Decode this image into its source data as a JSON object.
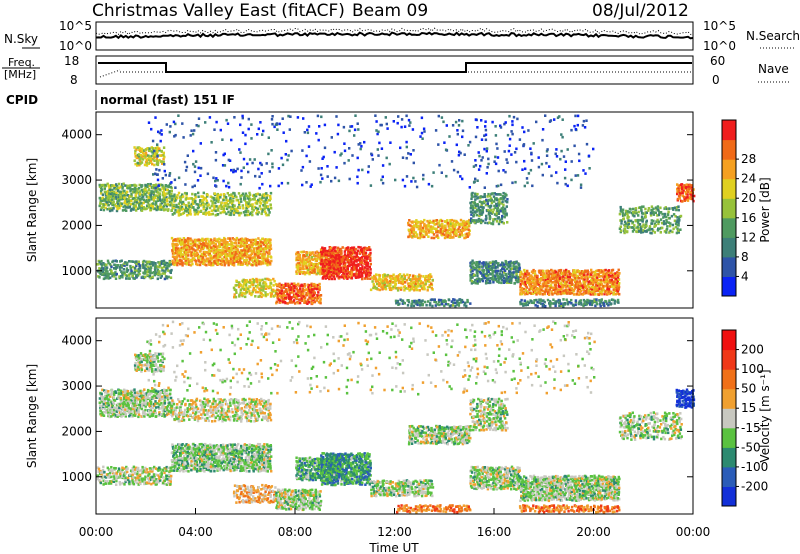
{
  "header": {
    "site": "Christmas Valley East (fitACF)",
    "beam": "Beam 09",
    "date": "08/Jul/2012"
  },
  "strips": {
    "nsky": {
      "label": "N.Sky",
      "left_ticks": [
        "10^5",
        "10^0"
      ]
    },
    "nsearch": {
      "label": "N.Search",
      "right_ticks": [
        "10^5",
        "10^0"
      ]
    },
    "freq": {
      "label_line1": "Freq.",
      "label_line2": "[MHz]",
      "left_ticks": [
        "18",
        "8"
      ]
    },
    "nave": {
      "label": "Nave",
      "right_ticks": [
        "60",
        "0"
      ]
    },
    "cpid": {
      "label": "CPID",
      "value": "normal (fast) 151 IF"
    }
  },
  "chart_data": [
    {
      "type": "heatmap",
      "title": "",
      "ylabel": "Slant Range [km]",
      "xlabel": "",
      "y_ticks": [
        "1000",
        "2000",
        "3000",
        "4000"
      ],
      "ylim": [
        180,
        4500
      ],
      "xlim": [
        0,
        24
      ],
      "colorbar": {
        "label": "Power [dB]",
        "ticks": [
          "4",
          "8",
          "12",
          "16",
          "20",
          "24",
          "28"
        ],
        "colors": [
          "#0a23f5",
          "#2e54a8",
          "#3d7f78",
          "#4f9a60",
          "#97c23a",
          "#e0d020",
          "#f5a020",
          "#f06a18",
          "#f01e1e"
        ]
      }
    },
    {
      "type": "heatmap",
      "title": "",
      "ylabel": "Slant Range [km]",
      "xlabel": "Time UT",
      "y_ticks": [
        "1000",
        "2000",
        "3000",
        "4000"
      ],
      "x_ticks": [
        "00:00",
        "04:00",
        "08:00",
        "12:00",
        "16:00",
        "20:00",
        "00:00"
      ],
      "ylim": [
        180,
        4500
      ],
      "xlim": [
        0,
        24
      ],
      "colorbar": {
        "label": "Velocity [m s⁻¹]",
        "ticks": [
          "200",
          "100",
          "50",
          "15",
          "-15",
          "-50",
          "-100",
          "-200"
        ],
        "colors": [
          "#1230d8",
          "#2a5cb8",
          "#2c8a70",
          "#5ac240",
          "#c8c8c0",
          "#f0a030",
          "#f07018",
          "#f03818",
          "#f01010"
        ]
      }
    }
  ]
}
